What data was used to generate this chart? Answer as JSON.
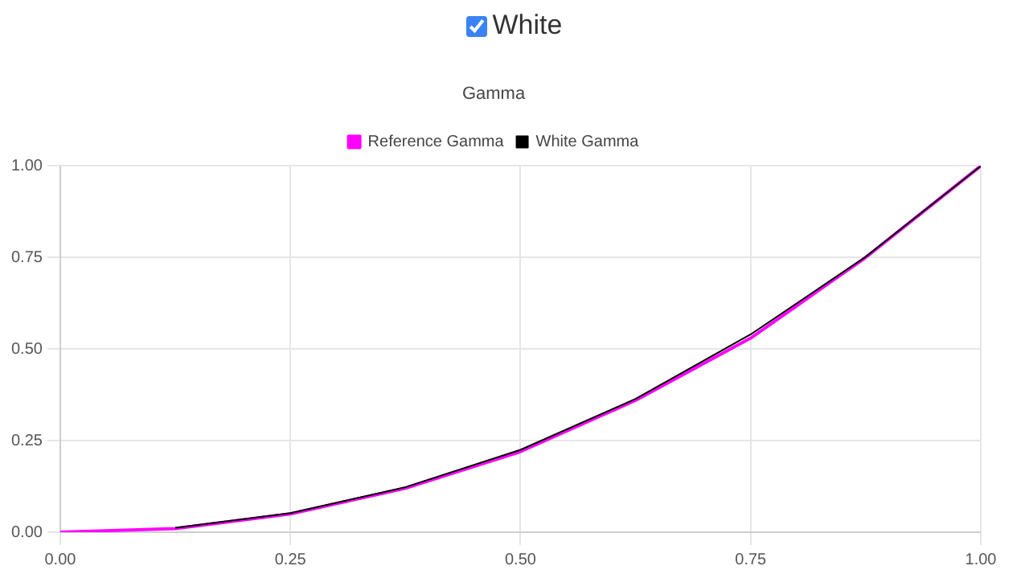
{
  "chart_data": {
    "type": "line",
    "title": "Gamma",
    "annotations": [
      "White"
    ],
    "x": [
      0,
      0.125,
      0.25,
      0.375,
      0.5,
      0.625,
      0.75,
      0.875,
      1
    ],
    "series": [
      {
        "name": "Reference Gamma",
        "color": "#ff00ff",
        "values": [
          0,
          0.01,
          0.05,
          0.12,
          0.22,
          0.36,
          0.53,
          0.75,
          1
        ]
      },
      {
        "name": "White Gamma",
        "color": "#000000",
        "values": [
          null,
          0.012,
          0.052,
          0.123,
          0.225,
          0.364,
          0.54,
          0.752,
          1
        ]
      }
    ],
    "xlim": [
      0,
      1
    ],
    "xticks": [
      {
        "value": 0,
        "label": "0.00"
      },
      {
        "value": 0.25,
        "label": "0.25"
      },
      {
        "value": 0.5,
        "label": "0.50"
      },
      {
        "value": 0.75,
        "label": "0.75"
      },
      {
        "value": 1,
        "label": "1.00"
      }
    ],
    "ylim": [
      0,
      1
    ],
    "yticks": [
      {
        "value": 0,
        "label": "0.00"
      },
      {
        "value": 0.25,
        "label": "0.25"
      },
      {
        "value": 0.5,
        "label": "0.50"
      },
      {
        "value": 0.75,
        "label": "0.75"
      },
      {
        "value": 1,
        "label": "1.00"
      }
    ],
    "grid": true,
    "legend": "top",
    "marker": "none",
    "line_style": "solid"
  }
}
